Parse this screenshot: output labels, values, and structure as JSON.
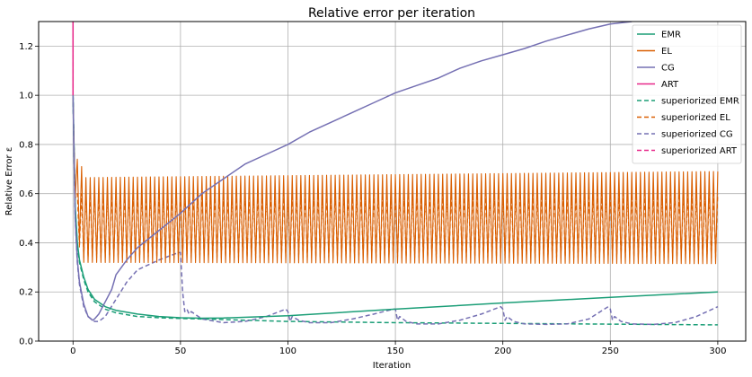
{
  "chart_data": {
    "type": "line",
    "title": "Relative error per iteration",
    "xlabel": "Iteration",
    "ylabel": "Relative Error ε",
    "xlim": [
      -16,
      313
    ],
    "ylim": [
      0.0,
      1.3
    ],
    "xticks": [
      0,
      50,
      100,
      150,
      200,
      250,
      300
    ],
    "yticks": [
      0.0,
      0.2,
      0.4,
      0.6,
      0.8,
      1.0,
      1.2
    ],
    "grid": true,
    "legend_position": "top-right",
    "series": [
      {
        "name": "EMR",
        "color": "#1b9e77",
        "style": "solid",
        "x": [
          0,
          1,
          2,
          3,
          5,
          7,
          10,
          15,
          20,
          30,
          40,
          50,
          60,
          70,
          100,
          150,
          200,
          250,
          300
        ],
        "y": [
          1.0,
          0.55,
          0.4,
          0.33,
          0.26,
          0.21,
          0.17,
          0.14,
          0.125,
          0.11,
          0.1,
          0.095,
          0.093,
          0.094,
          0.103,
          0.13,
          0.155,
          0.178,
          0.2
        ]
      },
      {
        "name": "EL",
        "color": "#d95f02",
        "style": "solid",
        "oscillation": {
          "start": 2,
          "period": 2,
          "high": 0.665,
          "low": 0.32,
          "high_end": 0.69,
          "low_end": 0.315
        },
        "x": [
          0,
          1,
          2,
          3,
          4
        ],
        "y": [
          1.0,
          0.58,
          0.74,
          0.4,
          0.71
        ]
      },
      {
        "name": "CG",
        "color": "#7570b3",
        "style": "solid",
        "x": [
          0,
          1,
          2,
          3,
          5,
          7,
          9,
          10,
          12,
          15,
          18,
          20,
          25,
          30,
          40,
          50,
          60,
          70,
          80,
          90,
          100,
          110,
          120,
          130,
          140,
          150,
          160,
          170,
          180,
          190,
          200,
          210,
          220,
          230,
          240,
          250,
          260
        ],
        "y": [
          1.0,
          0.5,
          0.33,
          0.24,
          0.15,
          0.1,
          0.085,
          0.09,
          0.11,
          0.16,
          0.21,
          0.27,
          0.33,
          0.38,
          0.45,
          0.52,
          0.6,
          0.66,
          0.72,
          0.76,
          0.8,
          0.85,
          0.89,
          0.93,
          0.97,
          1.01,
          1.04,
          1.07,
          1.11,
          1.14,
          1.165,
          1.19,
          1.22,
          1.245,
          1.27,
          1.29,
          1.3
        ]
      },
      {
        "name": "ART",
        "color": "#e7298a",
        "style": "solid",
        "x": [
          0,
          0
        ],
        "y": [
          1.0,
          1.3
        ]
      },
      {
        "name": "superiorized EMR",
        "color": "#1b9e77",
        "style": "dashed",
        "x": [
          0,
          1,
          2,
          3,
          5,
          7,
          10,
          15,
          20,
          30,
          40,
          50,
          60,
          80,
          100,
          150,
          200,
          250,
          300
        ],
        "y": [
          1.0,
          0.54,
          0.39,
          0.32,
          0.25,
          0.2,
          0.16,
          0.13,
          0.115,
          0.1,
          0.095,
          0.092,
          0.09,
          0.085,
          0.08,
          0.075,
          0.072,
          0.069,
          0.066
        ]
      },
      {
        "name": "superiorized EL",
        "color": "#d95f02",
        "style": "dashed",
        "oscillation": {
          "start": 2,
          "period": 2,
          "high": 0.6,
          "low": 0.34,
          "high_end": 0.6,
          "low_end": 0.34
        },
        "x": [
          0,
          1,
          2,
          3
        ],
        "y": [
          1.0,
          0.58,
          0.6,
          0.38
        ]
      },
      {
        "name": "superiorized CG",
        "color": "#7570b3",
        "style": "dashed",
        "x": [
          0,
          1,
          2,
          3,
          5,
          7,
          10,
          12,
          15,
          20,
          25,
          30,
          40,
          49,
          50,
          51,
          52,
          53,
          54,
          55,
          60,
          70,
          80,
          90,
          99,
          100,
          101,
          102,
          105,
          110,
          120,
          130,
          140,
          149,
          150,
          151,
          152,
          155,
          160,
          170,
          180,
          190,
          199,
          200,
          201,
          202,
          205,
          210,
          220,
          230,
          240,
          249,
          250,
          251,
          252,
          255,
          260,
          270,
          280,
          290,
          300
        ],
        "y": [
          1.0,
          0.5,
          0.32,
          0.23,
          0.14,
          0.1,
          0.08,
          0.08,
          0.1,
          0.17,
          0.24,
          0.29,
          0.33,
          0.36,
          0.36,
          0.2,
          0.12,
          0.13,
          0.11,
          0.12,
          0.09,
          0.075,
          0.08,
          0.1,
          0.13,
          0.12,
          0.08,
          0.1,
          0.085,
          0.075,
          0.075,
          0.09,
          0.11,
          0.13,
          0.13,
          0.085,
          0.1,
          0.08,
          0.07,
          0.07,
          0.085,
          0.11,
          0.14,
          0.13,
          0.085,
          0.1,
          0.08,
          0.07,
          0.068,
          0.07,
          0.09,
          0.14,
          0.13,
          0.085,
          0.1,
          0.08,
          0.07,
          0.068,
          0.075,
          0.1,
          0.14
        ]
      },
      {
        "name": "superiorized ART",
        "color": "#e7298a",
        "style": "dashed",
        "x": [
          0,
          0
        ],
        "y": [
          1.0,
          1.3
        ]
      }
    ]
  }
}
